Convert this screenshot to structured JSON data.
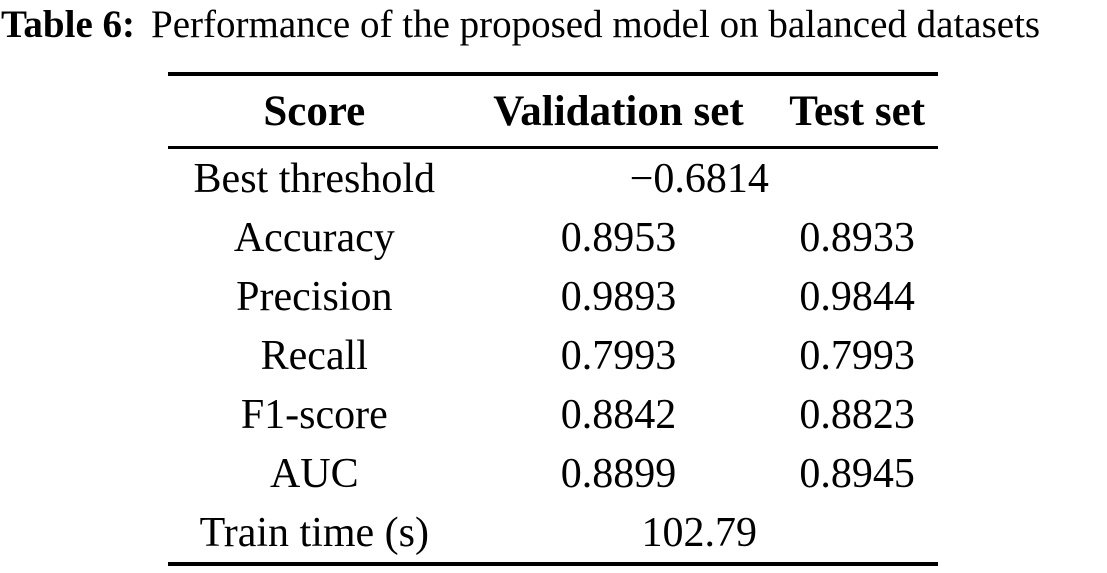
{
  "caption": {
    "label": "Table 6:",
    "text": "Performance of the proposed model on balanced datasets"
  },
  "table": {
    "columns": [
      "Score",
      "Validation set",
      "Test set"
    ],
    "rows": [
      {
        "label": "Best threshold",
        "validation": "−0.6814",
        "test": "",
        "span": true
      },
      {
        "label": "Accuracy",
        "validation": "0.8953",
        "test": "0.8933"
      },
      {
        "label": "Precision",
        "validation": "0.9893",
        "test": "0.9844"
      },
      {
        "label": "Recall",
        "validation": "0.7993",
        "test": "0.7993"
      },
      {
        "label": "F1-score",
        "validation": "0.8842",
        "test": "0.8823"
      },
      {
        "label": "AUC",
        "validation": "0.8899",
        "test": "0.8945"
      },
      {
        "label": "Train time (s)",
        "validation": "102.79",
        "test": "",
        "span": true
      }
    ]
  },
  "chart_data": {
    "type": "table",
    "title": "Table 6: Performance of the proposed model on balanced datasets",
    "columns": [
      "Score",
      "Validation set",
      "Test set"
    ],
    "cells": [
      [
        "Best threshold",
        "−0.6814",
        ""
      ],
      [
        "Accuracy",
        "0.8953",
        "0.8933"
      ],
      [
        "Precision",
        "0.9893",
        "0.9844"
      ],
      [
        "Recall",
        "0.7993",
        "0.7993"
      ],
      [
        "F1-score",
        "0.8842",
        "0.8823"
      ],
      [
        "AUC",
        "0.8899",
        "0.8945"
      ],
      [
        "Train time (s)",
        "102.79",
        ""
      ]
    ]
  },
  "colors": {
    "text": "#000000",
    "background": "#ffffff",
    "rule": "#000000"
  }
}
